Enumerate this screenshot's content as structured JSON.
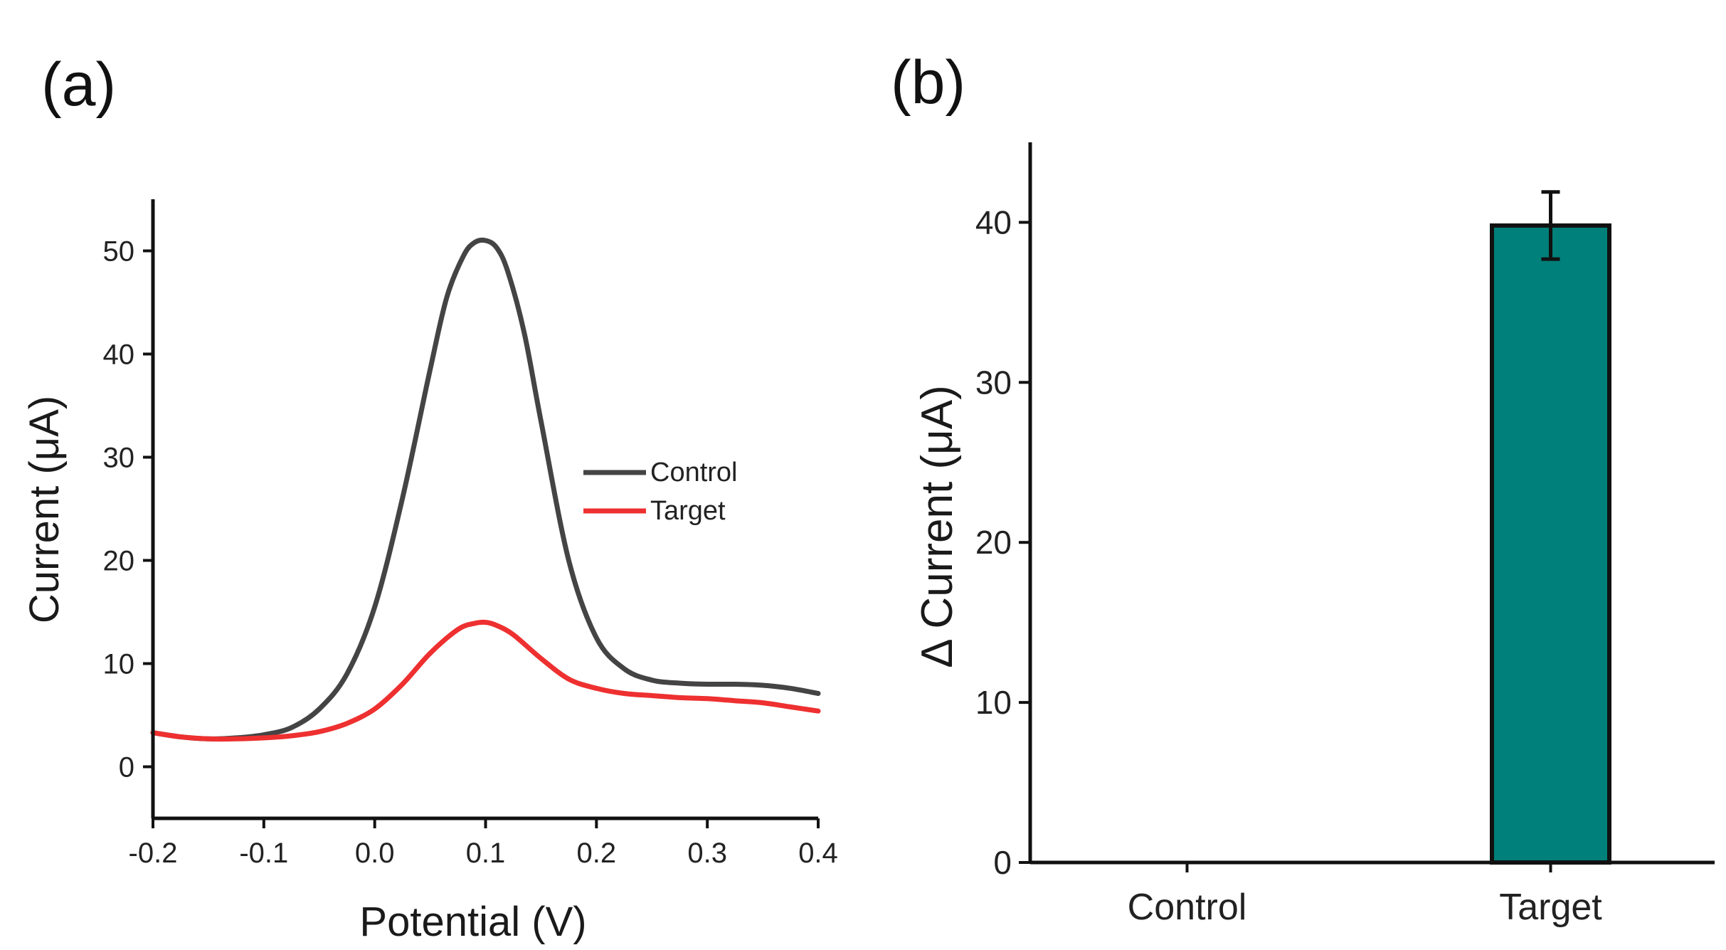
{
  "chart_data": [
    {
      "panel": "(a)",
      "type": "line",
      "title": "",
      "xlabel": "Potential (V)",
      "ylabel": "Current (μA)",
      "xlim": [
        -0.2,
        0.4
      ],
      "ylim": [
        -5,
        55
      ],
      "xticks": [
        -0.2,
        -0.1,
        0.0,
        0.1,
        0.2,
        0.3,
        0.4
      ],
      "xtick_labels": [
        "-0.2",
        "-0.1",
        "0.0",
        "0.1",
        "0.2",
        "0.3",
        "0.4"
      ],
      "yticks": [
        0,
        10,
        20,
        30,
        40,
        50
      ],
      "ytick_labels": [
        "0",
        "10",
        "20",
        "30",
        "40",
        "50"
      ],
      "legend_position": "center-right",
      "series": [
        {
          "name": "Control",
          "color": "#444444",
          "x": [
            -0.2,
            -0.175,
            -0.15,
            -0.125,
            -0.1,
            -0.075,
            -0.05,
            -0.025,
            0.0,
            0.025,
            0.05,
            0.065,
            0.08,
            0.09,
            0.1,
            0.11,
            0.12,
            0.135,
            0.15,
            0.175,
            0.2,
            0.225,
            0.25,
            0.275,
            0.3,
            0.325,
            0.35,
            0.375,
            0.4
          ],
          "values": [
            3.3,
            2.9,
            2.7,
            2.8,
            3.1,
            3.8,
            5.6,
            9.0,
            15.5,
            26.0,
            38.5,
            45.5,
            49.5,
            50.8,
            51.0,
            50.3,
            48.0,
            42.0,
            33.5,
            20.0,
            12.5,
            9.5,
            8.4,
            8.1,
            8.0,
            8.0,
            7.9,
            7.6,
            7.1
          ]
        },
        {
          "name": "Target",
          "color": "#ee3030",
          "x": [
            -0.2,
            -0.175,
            -0.15,
            -0.125,
            -0.1,
            -0.075,
            -0.05,
            -0.025,
            0.0,
            0.025,
            0.05,
            0.075,
            0.09,
            0.1,
            0.11,
            0.125,
            0.15,
            0.175,
            0.2,
            0.225,
            0.25,
            0.275,
            0.3,
            0.325,
            0.35,
            0.375,
            0.4
          ],
          "values": [
            3.3,
            2.9,
            2.7,
            2.7,
            2.8,
            3.0,
            3.4,
            4.2,
            5.6,
            8.0,
            11.0,
            13.3,
            13.9,
            14.0,
            13.7,
            12.8,
            10.5,
            8.5,
            7.6,
            7.1,
            6.9,
            6.7,
            6.6,
            6.4,
            6.2,
            5.8,
            5.4
          ]
        }
      ]
    },
    {
      "panel": "(b)",
      "type": "bar",
      "title": "",
      "xlabel": "",
      "ylabel": "Δ Current (μA)",
      "ylim": [
        0,
        45
      ],
      "yticks": [
        0,
        10,
        20,
        30,
        40
      ],
      "ytick_labels": [
        "0",
        "10",
        "20",
        "30",
        "40"
      ],
      "categories": [
        "Control",
        "Target"
      ],
      "values": [
        0,
        39.8
      ],
      "error": [
        0,
        2.1
      ],
      "bar_color": "#00807a"
    }
  ]
}
